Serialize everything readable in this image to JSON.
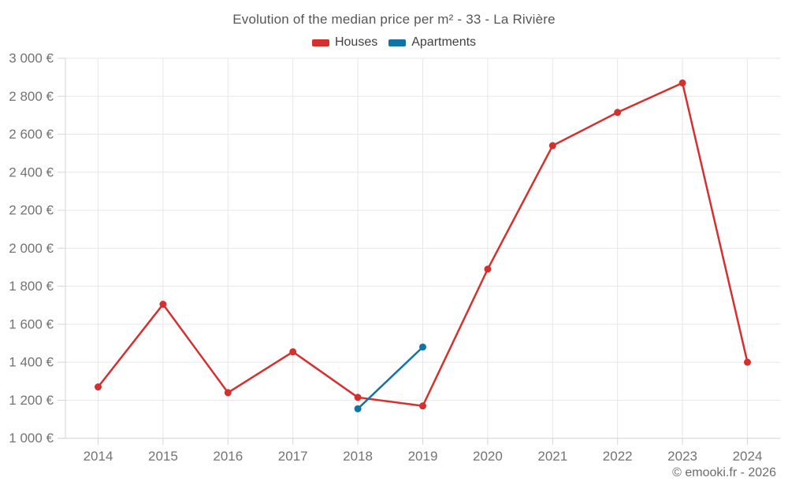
{
  "page": {
    "copyright": "© emooki.fr - 2026"
  },
  "chart_data": {
    "type": "line",
    "title": "Evolution of the median price per m² - 33 - La Rivière",
    "categories": [
      "2014",
      "2015",
      "2016",
      "2017",
      "2018",
      "2019",
      "2020",
      "2021",
      "2022",
      "2023",
      "2024"
    ],
    "series": [
      {
        "name": "Houses",
        "color": "#d5302e",
        "x": [
          "2014",
          "2015",
          "2016",
          "2017",
          "2018",
          "2019",
          "2020",
          "2021",
          "2022",
          "2023",
          "2024"
        ],
        "values": [
          1270,
          1705,
          1240,
          1455,
          1215,
          1170,
          1890,
          2540,
          2715,
          2870,
          1400
        ]
      },
      {
        "name": "Apartments",
        "color": "#1473a6",
        "x": [
          "2018",
          "2019"
        ],
        "values": [
          1155,
          1480
        ]
      }
    ],
    "ylabel": "",
    "xlabel": "",
    "ylim": [
      1000,
      3000
    ],
    "y_tick_step": 200,
    "y_tick_suffix": " €",
    "grid": true,
    "legend_position": "top",
    "marker": "circle"
  }
}
